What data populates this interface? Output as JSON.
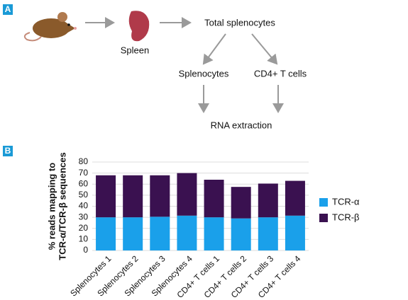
{
  "panels": {
    "a": "A",
    "b": "B"
  },
  "diagram": {
    "spleen": "Spleen",
    "total": "Total splenocytes",
    "splenocytes": "Splenocytes",
    "cd4": "CD4+ T cells",
    "rna": "RNA extraction"
  },
  "chart_data": {
    "type": "stacked_bar",
    "ylabel": [
      "% reads mapping to",
      "TCR-α/TCR-β sequences"
    ],
    "categories": [
      "Splenocytes 1",
      "Splenocytes 2",
      "Splenocytes 3",
      "Splenocytes 4",
      "CD4+ T cells 1",
      "CD4+ T cells 2",
      "CD4+ T cells 3",
      "CD4+ T cells 4"
    ],
    "series": [
      {
        "name": "TCR-α",
        "color": "#1aa0ea",
        "values": [
          30,
          30,
          30.5,
          31.5,
          30,
          29,
          30,
          31.5
        ]
      },
      {
        "name": "TCR-β",
        "color": "#3a1150",
        "values": [
          38,
          38,
          37.5,
          38.5,
          34,
          28.5,
          30.5,
          31.5
        ]
      }
    ],
    "ylim": [
      0,
      80
    ],
    "yticks": [
      0,
      10,
      20,
      30,
      40,
      50,
      60,
      70,
      80
    ],
    "grid": true,
    "legend": "right"
  }
}
